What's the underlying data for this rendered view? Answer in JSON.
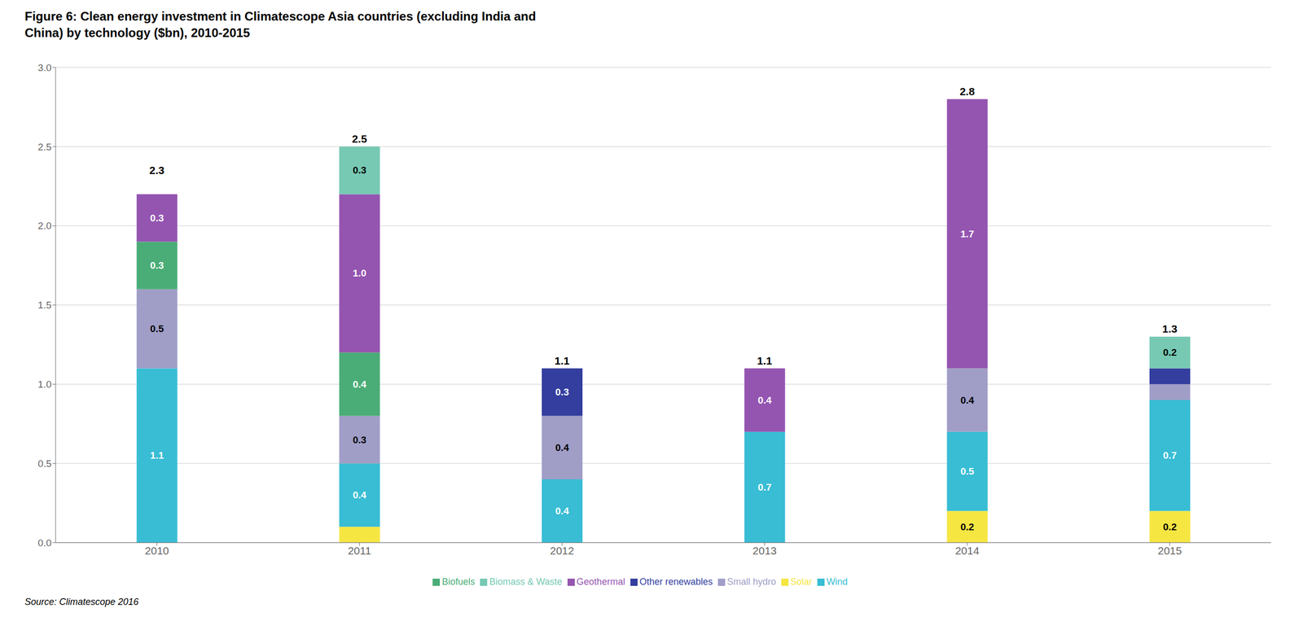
{
  "chart_data": {
    "type": "bar",
    "stacked": true,
    "title": "Figure 6: Clean energy investment in Climatescope Asia countries (excluding India and\nChina) by technology ($bn), 2010-2015",
    "source": "Source: Climatescope 2016",
    "categories": [
      "2010",
      "2011",
      "2012",
      "2013",
      "2014",
      "2015"
    ],
    "series": [
      {
        "name": "Solar",
        "color": "#f5e642",
        "values": [
          0.0,
          0.1,
          0.0,
          0.0,
          0.2,
          0.2
        ],
        "value_labels": [
          null,
          null,
          null,
          null,
          "0.2",
          "0.2"
        ]
      },
      {
        "name": "Wind",
        "color": "#38bdd4",
        "values": [
          1.1,
          0.4,
          0.4,
          0.7,
          0.5,
          0.7
        ],
        "value_labels": [
          "1.1",
          "0.4",
          "0.4",
          "0.7",
          "0.5",
          "0.7"
        ]
      },
      {
        "name": "Small hydro",
        "color": "#a09ec7",
        "values": [
          0.5,
          0.3,
          0.4,
          0.0,
          0.4,
          0.1
        ],
        "value_labels": [
          "0.5",
          "0.3",
          "0.4",
          null,
          "0.4",
          null
        ]
      },
      {
        "name": "Biofuels",
        "color": "#4aad77",
        "values": [
          0.3,
          0.4,
          0.0,
          0.0,
          0.0,
          0.0
        ],
        "value_labels": [
          "0.3",
          "0.4",
          null,
          null,
          null,
          null
        ]
      },
      {
        "name": "Geothermal",
        "color": "#9455b0",
        "values": [
          0.3,
          1.0,
          0.0,
          0.4,
          1.7,
          0.0
        ],
        "value_labels": [
          "0.3",
          "1.0",
          null,
          "0.4",
          "1.7",
          null
        ]
      },
      {
        "name": "Other renewables",
        "color": "#333e9e",
        "values": [
          0.0,
          0.0,
          0.3,
          0.0,
          0.0,
          0.1
        ],
        "value_labels": [
          null,
          null,
          "0.3",
          null,
          null,
          null
        ]
      },
      {
        "name": "Biomass & Waste",
        "color": "#77c9b4",
        "values": [
          0.0,
          0.3,
          0.0,
          0.0,
          0.0,
          0.2
        ],
        "value_labels": [
          null,
          "0.3",
          null,
          null,
          null,
          "0.2"
        ]
      }
    ],
    "totals": [
      2.3,
      2.5,
      1.1,
      1.1,
      2.8,
      1.3
    ],
    "ylim": [
      0,
      3.0
    ],
    "yticks": [
      {
        "value": 0.0,
        "label": "0.0"
      },
      {
        "value": 0.5,
        "label": "0.5"
      },
      {
        "value": 1.0,
        "label": "1.0"
      },
      {
        "value": 1.5,
        "label": "1.5"
      },
      {
        "value": 2.0,
        "label": "2.0"
      },
      {
        "value": 2.5,
        "label": "2.5"
      },
      {
        "value": 3.0,
        "label": "3.0"
      }
    ],
    "grid": true,
    "legend": "bottom",
    "data_labels": true
  }
}
